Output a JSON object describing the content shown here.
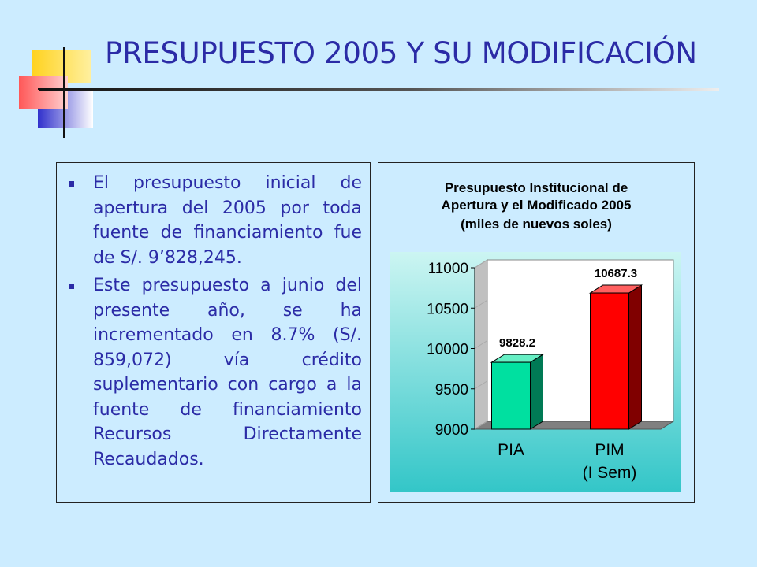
{
  "slide": {
    "title": "PRESUPUESTO 2005 Y SU MODIFICACIÓN",
    "bullets": [
      "El presupuesto inicial de apertura del 2005 por toda fuente de financiamiento fue de S/. 9’828,245.",
      "Este presupuesto a junio del presente año, se ha incrementado en 8.7% (S/. 859,072) vía crédito suplementario con cargo a la fuente de financiamiento Recursos Directamente Recaudados."
    ]
  },
  "colors": {
    "background": "#ccecff",
    "title_text": "#2b2ba6",
    "plot_gradient_top": "#ccf5f2",
    "plot_gradient_bottom": "#33c6c8",
    "bar_pia": "#00e0a0",
    "bar_pim": "#ff0000"
  },
  "chart_data": {
    "type": "bar",
    "title_lines": [
      "Presupuesto Institucional de",
      "Apertura y el Modificado 2005",
      "(miles de nuevos soles)"
    ],
    "categories": [
      "PIA",
      "PIM"
    ],
    "category_sublabels": [
      "",
      "(I Sem)"
    ],
    "values": [
      9828.2,
      10687.3
    ],
    "value_labels": [
      "9828.2",
      "10687.3"
    ],
    "yticks": [
      "11000",
      "10500",
      "10000",
      "9500",
      "9000"
    ],
    "ylim": [
      9000,
      11000
    ],
    "style": "3d-bar",
    "grid": false,
    "legend": "none"
  }
}
